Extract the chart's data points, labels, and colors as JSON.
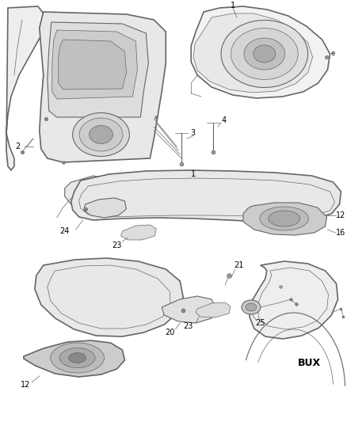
{
  "bg_color": "#ffffff",
  "line_color": "#666666",
  "label_color": "#000000",
  "figsize": [
    4.38,
    5.33
  ],
  "dpi": 100
}
